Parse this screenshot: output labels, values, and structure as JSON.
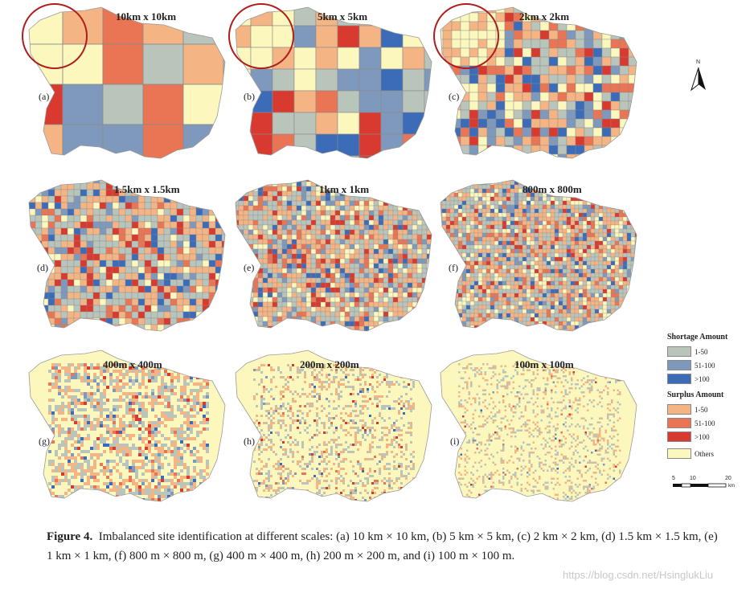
{
  "panels": [
    {
      "id": "a",
      "label": "(a)",
      "title": "10km x 10km"
    },
    {
      "id": "b",
      "label": "(b)",
      "title": "5km x 5km"
    },
    {
      "id": "c",
      "label": "(c)",
      "title": "2km x 2km"
    },
    {
      "id": "d",
      "label": "(d)",
      "title": "1.5km x 1.5km"
    },
    {
      "id": "e",
      "label": "(e)",
      "title": "1km x 1km"
    },
    {
      "id": "f",
      "label": "(f)",
      "title": "800m x 800m"
    },
    {
      "id": "g",
      "label": "(g)",
      "title": "400m x 400m"
    },
    {
      "id": "h",
      "label": "(h)",
      "title": "200m x 200m"
    },
    {
      "id": "i",
      "label": "(i)",
      "title": "100m x 100m"
    }
  ],
  "legend": {
    "shortage_title": "Shortage Amount",
    "shortage": [
      {
        "label": "1-50",
        "color": "#b9c4bb"
      },
      {
        "label": "51-100",
        "color": "#7f99bd"
      },
      {
        "label": ">100",
        "color": "#3c6cb8"
      }
    ],
    "surplus_title": "Surplus Amount",
    "surplus": [
      {
        "label": "1-50",
        "color": "#f5b483"
      },
      {
        "label": "51-100",
        "color": "#ea7554"
      },
      {
        "label": ">100",
        "color": "#d93a2f"
      }
    ],
    "others": {
      "label": "Others",
      "color": "#fbf7bd"
    }
  },
  "north_label": "N",
  "scale": {
    "ticks": [
      "5",
      "10",
      "20"
    ],
    "unit": "km"
  },
  "caption": {
    "lead": "Figure 4.",
    "text": "Imbalanced site identification at different scales: (a) 10 km × 10 km, (b) 5 km × 5 km, (c) 2 km × 2 km, (d) 1.5 km × 1.5 km, (e) 1 km × 1 km, (f) 800 m × 800 m, (g) 400 m × 400 m, (h) 200 m × 200 m, and (i) 100 m × 100 m."
  },
  "watermark": "https://blog.csdn.net/HsinglukLiu"
}
